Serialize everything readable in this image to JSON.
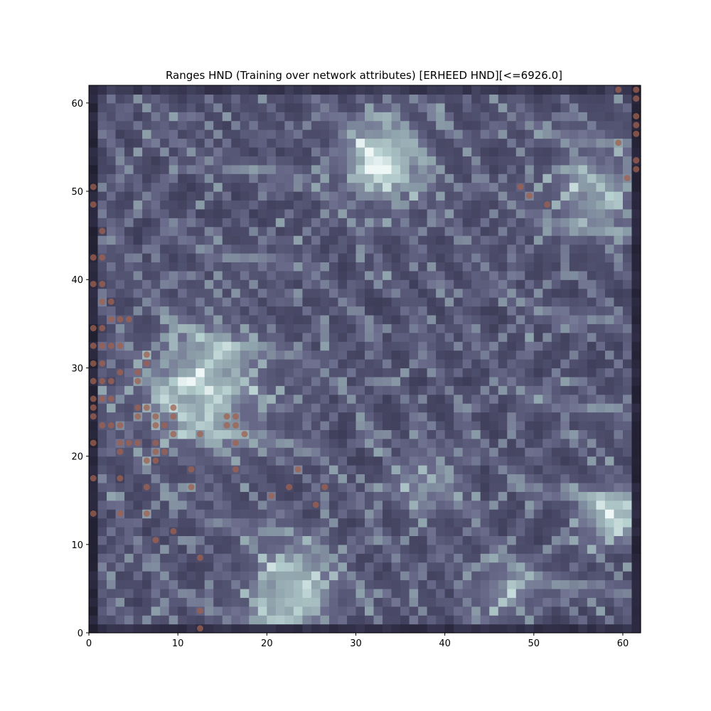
{
  "chart_data": {
    "type": "heatmap",
    "title": "Ranges HND (Training over network attributes) [ERHEED HND][<=6926.0]",
    "xlabel": "",
    "ylabel": "",
    "xlim": [
      0,
      62
    ],
    "ylim": [
      0,
      62
    ],
    "xticks": [
      0,
      10,
      20,
      30,
      40,
      50,
      60
    ],
    "yticks": [
      0,
      10,
      20,
      30,
      40,
      50,
      60
    ],
    "xtick_labels": [
      "0",
      "10",
      "20",
      "30",
      "40",
      "50",
      "60"
    ],
    "ytick_labels": [
      "0",
      "10",
      "20",
      "30",
      "40",
      "50",
      "60"
    ],
    "grid": false,
    "colormap": "bone",
    "cmap_stops": [
      "#14141e",
      "#2e2c44",
      "#4a4a68",
      "#69698a",
      "#8fa3ac",
      "#b7d0d0",
      "#eef6f6"
    ],
    "heatmap_size": [
      62,
      62
    ],
    "bright_regions": [
      {
        "cx": 33,
        "cy": 53.5,
        "r": 4.2,
        "amp": 0.55
      },
      {
        "cx": 13,
        "cy": 28,
        "r": 6.5,
        "amp": 0.42
      },
      {
        "cx": 58.5,
        "cy": 13,
        "r": 3.0,
        "amp": 0.45
      },
      {
        "cx": 23,
        "cy": 5,
        "r": 4.5,
        "amp": 0.45
      },
      {
        "cx": 57,
        "cy": 50,
        "r": 4.5,
        "amp": 0.32
      },
      {
        "cx": 38,
        "cy": 17,
        "r": 3.5,
        "amp": 0.22
      },
      {
        "cx": 47,
        "cy": 5,
        "r": 3.5,
        "amp": 0.25
      }
    ],
    "marker_color": "#a0614f",
    "points": [
      {
        "x": 0.5,
        "y": 50.5
      },
      {
        "x": 0.5,
        "y": 48.5
      },
      {
        "x": 0.5,
        "y": 42.5
      },
      {
        "x": 0.5,
        "y": 39.5
      },
      {
        "x": 0.5,
        "y": 34.5
      },
      {
        "x": 0.5,
        "y": 32.5
      },
      {
        "x": 0.5,
        "y": 30.5
      },
      {
        "x": 0.5,
        "y": 28.5
      },
      {
        "x": 0.5,
        "y": 26.5
      },
      {
        "x": 0.5,
        "y": 25.5
      },
      {
        "x": 0.5,
        "y": 24.5
      },
      {
        "x": 0.5,
        "y": 21.5
      },
      {
        "x": 0.5,
        "y": 17.5
      },
      {
        "x": 0.5,
        "y": 13.5
      },
      {
        "x": 1.5,
        "y": 45.5
      },
      {
        "x": 1.5,
        "y": 42.5
      },
      {
        "x": 1.5,
        "y": 39.5
      },
      {
        "x": 1.5,
        "y": 37.5
      },
      {
        "x": 1.5,
        "y": 34.5
      },
      {
        "x": 1.5,
        "y": 32.5
      },
      {
        "x": 1.5,
        "y": 30.5
      },
      {
        "x": 1.5,
        "y": 28.5
      },
      {
        "x": 1.5,
        "y": 26.5
      },
      {
        "x": 1.5,
        "y": 23.5
      },
      {
        "x": 2.5,
        "y": 37.5
      },
      {
        "x": 2.5,
        "y": 35.5
      },
      {
        "x": 2.5,
        "y": 32.5
      },
      {
        "x": 2.5,
        "y": 28.5
      },
      {
        "x": 2.5,
        "y": 26.5
      },
      {
        "x": 2.5,
        "y": 23.5
      },
      {
        "x": 3.5,
        "y": 35.5
      },
      {
        "x": 3.5,
        "y": 32.5
      },
      {
        "x": 3.5,
        "y": 29.5
      },
      {
        "x": 3.5,
        "y": 23.5
      },
      {
        "x": 3.5,
        "y": 21.5
      },
      {
        "x": 3.5,
        "y": 20.5
      },
      {
        "x": 3.5,
        "y": 17.5
      },
      {
        "x": 3.5,
        "y": 13.5
      },
      {
        "x": 4.5,
        "y": 35.5
      },
      {
        "x": 4.5,
        "y": 21.5
      },
      {
        "x": 5.5,
        "y": 29.5
      },
      {
        "x": 5.5,
        "y": 28.5
      },
      {
        "x": 5.5,
        "y": 25.5
      },
      {
        "x": 5.5,
        "y": 24.5
      },
      {
        "x": 5.5,
        "y": 21.5
      },
      {
        "x": 6.5,
        "y": 31.5
      },
      {
        "x": 6.5,
        "y": 30.5
      },
      {
        "x": 6.5,
        "y": 25.5
      },
      {
        "x": 6.5,
        "y": 19.5
      },
      {
        "x": 6.5,
        "y": 16.5
      },
      {
        "x": 6.5,
        "y": 13.5
      },
      {
        "x": 7.5,
        "y": 24.5
      },
      {
        "x": 7.5,
        "y": 23.5
      },
      {
        "x": 7.5,
        "y": 21.5
      },
      {
        "x": 7.5,
        "y": 20.5
      },
      {
        "x": 7.5,
        "y": 19.5
      },
      {
        "x": 7.5,
        "y": 10.5
      },
      {
        "x": 8.5,
        "y": 23.5
      },
      {
        "x": 8.5,
        "y": 20.5
      },
      {
        "x": 9.5,
        "y": 25.5
      },
      {
        "x": 9.5,
        "y": 24.5
      },
      {
        "x": 9.5,
        "y": 22.5
      },
      {
        "x": 9.5,
        "y": 11.5
      },
      {
        "x": 11.5,
        "y": 18.5
      },
      {
        "x": 11.5,
        "y": 16.5
      },
      {
        "x": 12.5,
        "y": 22.5
      },
      {
        "x": 12.5,
        "y": 8.5
      },
      {
        "x": 12.5,
        "y": 2.5
      },
      {
        "x": 12.5,
        "y": 0.5
      },
      {
        "x": 15.5,
        "y": 24.5
      },
      {
        "x": 15.5,
        "y": 23.5
      },
      {
        "x": 16.5,
        "y": 24.5
      },
      {
        "x": 16.5,
        "y": 23.5
      },
      {
        "x": 16.5,
        "y": 21.5
      },
      {
        "x": 16.5,
        "y": 18.5
      },
      {
        "x": 17.5,
        "y": 22.5
      },
      {
        "x": 20.5,
        "y": 15.5
      },
      {
        "x": 22.5,
        "y": 16.5
      },
      {
        "x": 23.5,
        "y": 18.5
      },
      {
        "x": 25.5,
        "y": 14.5
      },
      {
        "x": 26.5,
        "y": 16.5
      },
      {
        "x": 48.5,
        "y": 50.5
      },
      {
        "x": 49.5,
        "y": 49.5
      },
      {
        "x": 51.5,
        "y": 48.5
      },
      {
        "x": 59.5,
        "y": 61.5
      },
      {
        "x": 59.5,
        "y": 55.5
      },
      {
        "x": 60.5,
        "y": 51.5
      },
      {
        "x": 61.5,
        "y": 61.5
      },
      {
        "x": 61.5,
        "y": 60.5
      },
      {
        "x": 61.5,
        "y": 58.5
      },
      {
        "x": 61.5,
        "y": 57.5
      },
      {
        "x": 61.5,
        "y": 56.5
      },
      {
        "x": 61.5,
        "y": 53.5
      },
      {
        "x": 61.5,
        "y": 52.5
      }
    ]
  }
}
